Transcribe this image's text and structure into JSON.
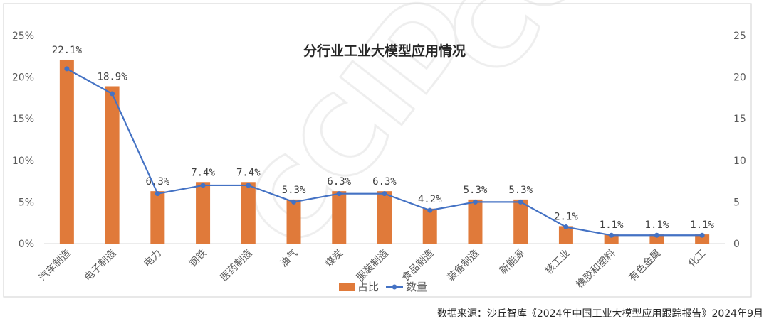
{
  "chart_data": {
    "type": "bar",
    "title": "分行业工业大模型应用情况",
    "categories": [
      "汽车制造",
      "电子制造",
      "电力",
      "钢铁",
      "医药制造",
      "油气",
      "煤炭",
      "服装制造",
      "食品制造",
      "装备制造",
      "新能源",
      "核工业",
      "橡胶和塑料",
      "有色金属",
      "化工"
    ],
    "series": [
      {
        "name": "占比",
        "kind": "bar",
        "axis": "left",
        "color": "#e07a3a",
        "values": [
          22.1,
          18.9,
          6.3,
          7.4,
          7.4,
          5.3,
          6.3,
          6.3,
          4.2,
          5.3,
          5.3,
          2.1,
          1.1,
          1.1,
          1.1
        ],
        "labels": [
          "22.1%",
          "18.9%",
          "6.3%",
          "7.4%",
          "7.4%",
          "5.3%",
          "6.3%",
          "6.3%",
          "4.2%",
          "5.3%",
          "5.3%",
          "2.1%",
          "1.1%",
          "1.1%",
          "1.1%"
        ]
      },
      {
        "name": "数量",
        "kind": "line",
        "axis": "right",
        "color": "#4472c4",
        "values": [
          21,
          18,
          6,
          7,
          7,
          5,
          6,
          6,
          4,
          5,
          5,
          2,
          1,
          1,
          1
        ]
      }
    ],
    "y_left": {
      "ylim": [
        0,
        25
      ],
      "ticks": [
        "0%",
        "5%",
        "10%",
        "15%",
        "20%",
        "25%"
      ]
    },
    "y_right": {
      "ylim": [
        0,
        25
      ],
      "ticks": [
        "0",
        "5",
        "10",
        "15",
        "20",
        "25"
      ]
    },
    "grid": false,
    "legend": "bottom-center"
  },
  "source_note": "数据来源：沙丘智库《2024年中国工业大模型应用跟踪报告》2024年9月",
  "watermark": "CCID"
}
